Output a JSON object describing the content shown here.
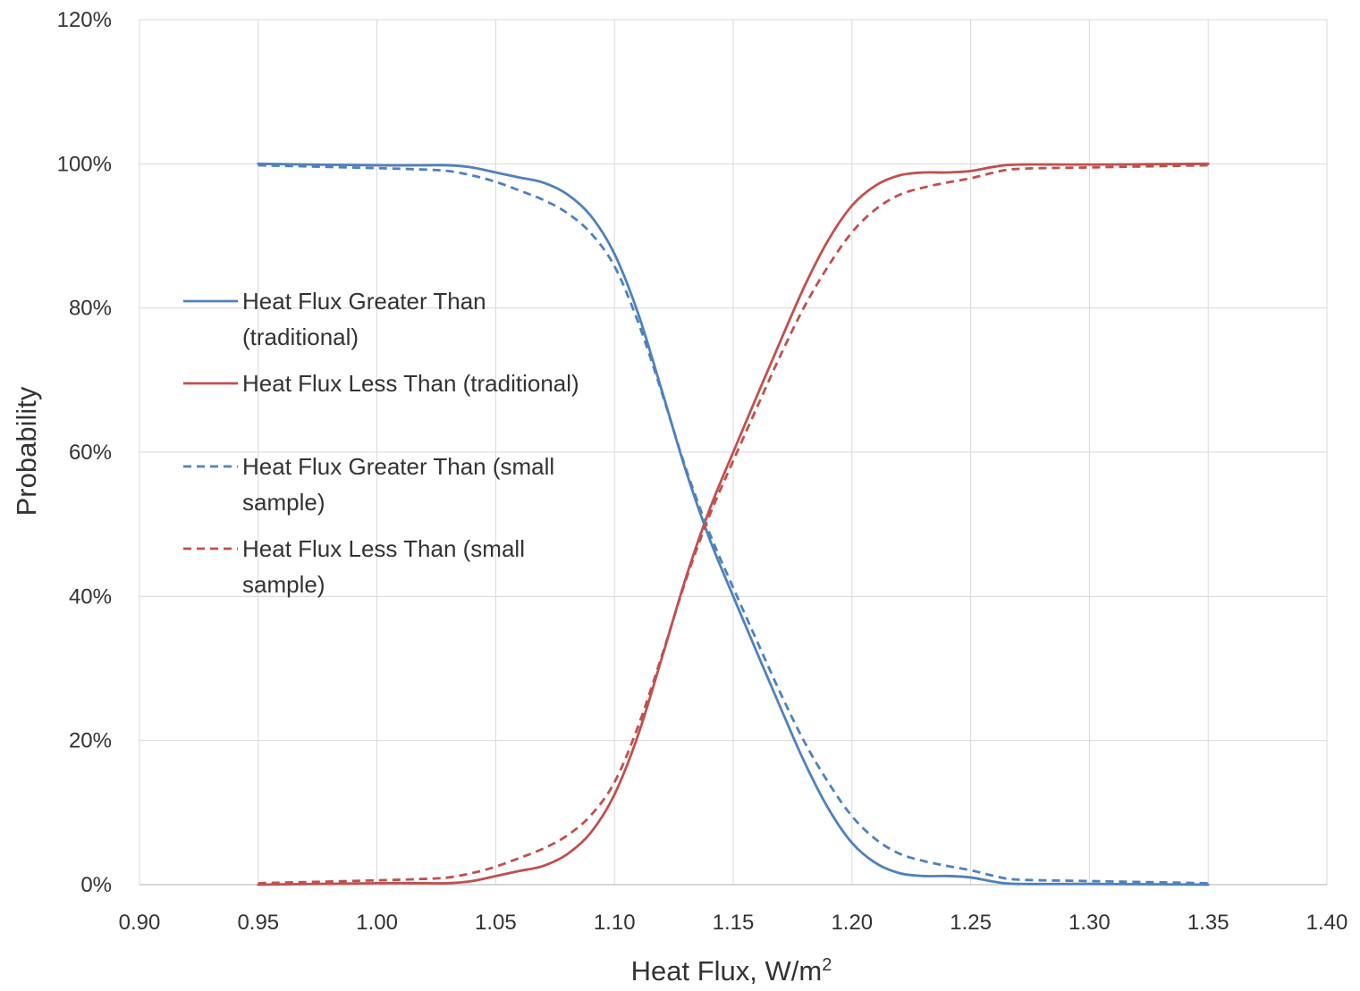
{
  "chart_data": {
    "type": "line",
    "title": "",
    "xlabel": "Heat Flux, W/m",
    "xlabel_superscript": "2",
    "ylabel": "Probability",
    "xlim": [
      0.9,
      1.4
    ],
    "ylim": [
      0,
      120
    ],
    "x_ticks": [
      "0.90",
      "0.95",
      "1.00",
      "1.05",
      "1.10",
      "1.15",
      "1.20",
      "1.25",
      "1.30",
      "1.35",
      "1.40"
    ],
    "y_ticks": [
      "0%",
      "20%",
      "40%",
      "60%",
      "80%",
      "100%",
      "120%"
    ],
    "grid": true,
    "legend_position": "left-center",
    "x": [
      0.95,
      1.0,
      1.02,
      1.03,
      1.04,
      1.05,
      1.06,
      1.07,
      1.08,
      1.09,
      1.1,
      1.11,
      1.12,
      1.13,
      1.14,
      1.15,
      1.16,
      1.17,
      1.18,
      1.19,
      1.2,
      1.21,
      1.22,
      1.23,
      1.24,
      1.25,
      1.26,
      1.27,
      1.3,
      1.35
    ],
    "series": [
      {
        "name": "Heat Flux Greater Than (traditional)",
        "color": "#4f81bd",
        "dash": "solid",
        "values": [
          100,
          99.8,
          99.8,
          99.8,
          99.5,
          98.8,
          98.1,
          97.4,
          95.8,
          92.8,
          87.5,
          79.2,
          68.5,
          57.5,
          48.0,
          40.0,
          32.2,
          24.5,
          17.0,
          10.6,
          5.8,
          3.0,
          1.6,
          1.2,
          1.2,
          1.0,
          0.4,
          0.1,
          0.1,
          0
        ]
      },
      {
        "name": "Heat Flux Less Than (traditional)",
        "color": "#c0504d",
        "dash": "solid",
        "values": [
          0,
          0.2,
          0.2,
          0.2,
          0.5,
          1.2,
          1.9,
          2.6,
          4.2,
          7.2,
          12.5,
          20.8,
          31.5,
          42.5,
          52.0,
          60.0,
          67.8,
          75.5,
          83.0,
          89.4,
          94.2,
          97.0,
          98.4,
          98.8,
          98.8,
          99.0,
          99.6,
          99.9,
          99.9,
          100
        ]
      },
      {
        "name": "Heat Flux Greater Than (small sample)",
        "color": "#4f81bd",
        "dash": "dashed",
        "values": [
          99.8,
          99.4,
          99.2,
          99.0,
          98.4,
          97.5,
          96.3,
          95.0,
          93.2,
          90.4,
          85.8,
          78.0,
          68.2,
          57.8,
          48.8,
          41.2,
          33.8,
          26.5,
          19.8,
          14.2,
          9.5,
          6.3,
          4.3,
          3.3,
          2.6,
          2.0,
          1.2,
          0.7,
          0.5,
          0.2
        ]
      },
      {
        "name": "Heat Flux Less Than (small sample)",
        "color": "#c0504d",
        "dash": "dashed",
        "values": [
          0.2,
          0.6,
          0.8,
          1.0,
          1.6,
          2.5,
          3.7,
          5.0,
          6.8,
          9.6,
          14.2,
          22.0,
          31.8,
          42.2,
          51.2,
          58.8,
          66.2,
          73.5,
          80.2,
          85.8,
          90.5,
          93.7,
          95.7,
          96.7,
          97.4,
          98.0,
          98.8,
          99.3,
          99.5,
          99.8
        ]
      }
    ],
    "legend": [
      {
        "line1": "Heat Flux Greater Than",
        "line2": "(traditional)"
      },
      {
        "line1": "Heat Flux Less Than (traditional)",
        "line2": ""
      },
      {
        "line1": "Heat Flux Greater Than (small",
        "line2": "sample)"
      },
      {
        "line1": "Heat Flux Less Than (small",
        "line2": "sample)"
      }
    ]
  }
}
